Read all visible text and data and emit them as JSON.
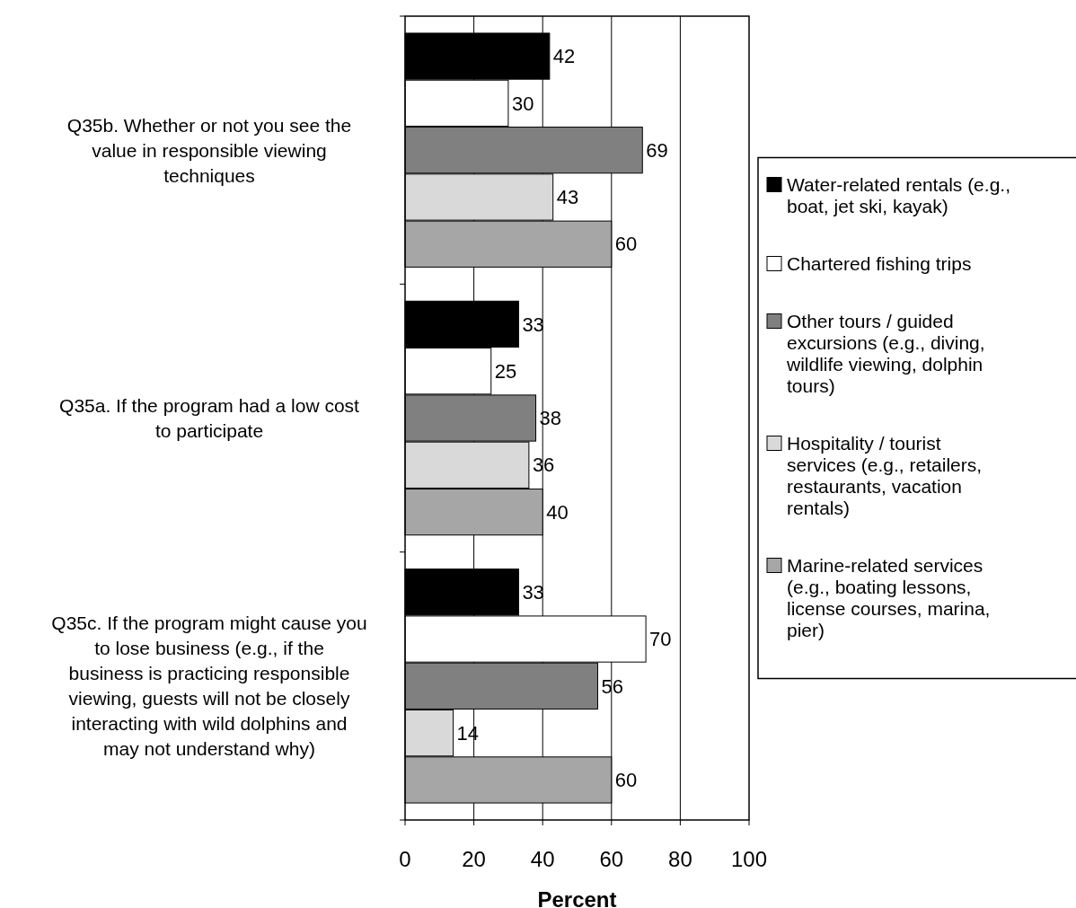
{
  "chart_data": {
    "type": "bar",
    "orientation": "horizontal",
    "xlabel": "Percent",
    "categories": [
      "Q35b. Whether or not you see the value in responsible viewing techniques",
      "Q35a. If the program had a low cost to participate",
      "Q35c. If the program might cause you to lose business (e.g., if the business is practicing responsible viewing, guests will not be closely interacting with wild dolphins and may not understand why)"
    ],
    "series": [
      {
        "name": "Water-related rentals (e.g., boat, jet ski, kayak)",
        "color": "#000000",
        "values": [
          42,
          33,
          33
        ]
      },
      {
        "name": "Chartered fishing trips",
        "color": "#ffffff",
        "values": [
          30,
          25,
          70
        ]
      },
      {
        "name": "Other tours / guided excursions (e.g., diving, wildlife viewing, dolphin tours)",
        "color": "#808080",
        "values": [
          69,
          38,
          56
        ]
      },
      {
        "name": "Hospitality / tourist services (e.g., retailers, restaurants, vacation rentals)",
        "color": "#d9d9d9",
        "values": [
          43,
          36,
          14
        ]
      },
      {
        "name": "Marine-related services (e.g., boating lessons, license courses, marina, pier)",
        "color": "#a6a6a6",
        "values": [
          60,
          40,
          60
        ]
      }
    ],
    "xlim": [
      0,
      100
    ],
    "xticks": [
      0,
      20,
      40,
      60,
      80,
      100
    ],
    "grid": "x",
    "legend": "right",
    "data_labels": true
  }
}
